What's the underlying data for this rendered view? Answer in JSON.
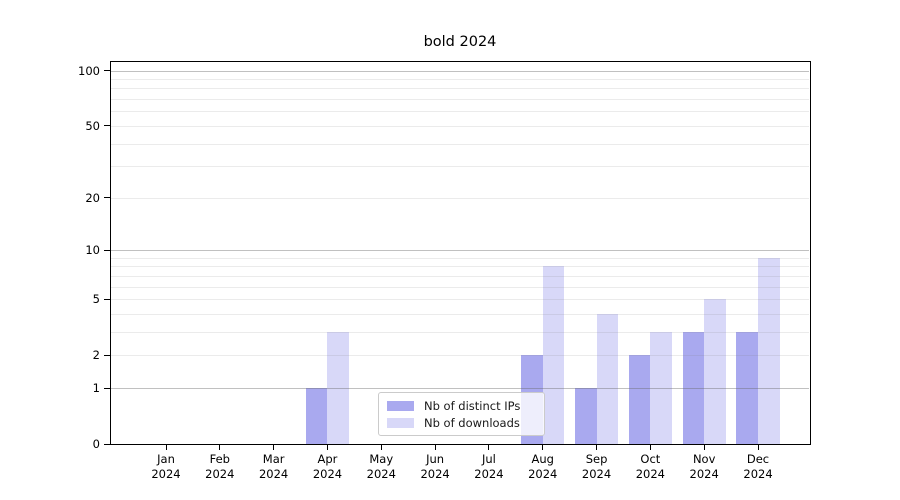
{
  "chart_data": {
    "type": "bar",
    "title": "bold 2024",
    "categories": [
      "Jan 2024",
      "Feb 2024",
      "Mar 2024",
      "Apr 2024",
      "May 2024",
      "Jun 2024",
      "Jul 2024",
      "Aug 2024",
      "Sep 2024",
      "Oct 2024",
      "Nov 2024",
      "Dec 2024"
    ],
    "series": [
      {
        "name": "Nb of distinct IPs",
        "color": "#a9a9ef",
        "values": [
          0,
          0,
          0,
          1,
          0,
          0,
          0,
          2,
          1,
          2,
          3,
          3
        ]
      },
      {
        "name": "Nb of downloads",
        "color": "#d8d8f8",
        "values": [
          0,
          0,
          0,
          3,
          0,
          0,
          0,
          8,
          4,
          3,
          5,
          9
        ]
      }
    ],
    "xlabel": "",
    "ylabel": "",
    "yscale": "log1p",
    "yticks": [
      0,
      1,
      2,
      5,
      10,
      20,
      50,
      100
    ],
    "ylim": [
      0,
      112
    ],
    "grid": true,
    "legend_position": "lower center",
    "background_color": "#ffffff",
    "text_color": "#000000"
  }
}
